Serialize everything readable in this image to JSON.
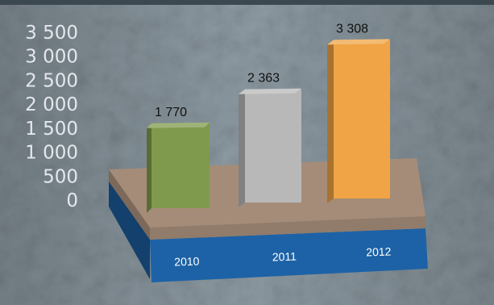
{
  "chart_data": {
    "type": "bar",
    "title": "",
    "xlabel": "",
    "ylabel": "",
    "categories": [
      "2010",
      "2011",
      "2012"
    ],
    "values": [
      1770,
      2363,
      3308
    ],
    "value_labels": [
      "1 770",
      "2 363",
      "3 308"
    ],
    "ylim": [
      0,
      3500
    ],
    "yticks": [
      {
        "value": 0,
        "label": "0"
      },
      {
        "value": 500,
        "label": "500"
      },
      {
        "value": 1000,
        "label": "1 000"
      },
      {
        "value": 1500,
        "label": "1 500"
      },
      {
        "value": 2000,
        "label": "2 000"
      },
      {
        "value": 2500,
        "label": "2 500"
      },
      {
        "value": 3000,
        "label": "3 000"
      },
      {
        "value": 3500,
        "label": "3 500"
      }
    ],
    "grid": false,
    "legend": "none",
    "bar_colors": [
      "#7f9a4c",
      "#b8b8b8",
      "#f0a445"
    ],
    "platform_top_color": "#a58c78",
    "platform_base_color": "#1d62a6",
    "background_color": "#8c9aa2"
  }
}
